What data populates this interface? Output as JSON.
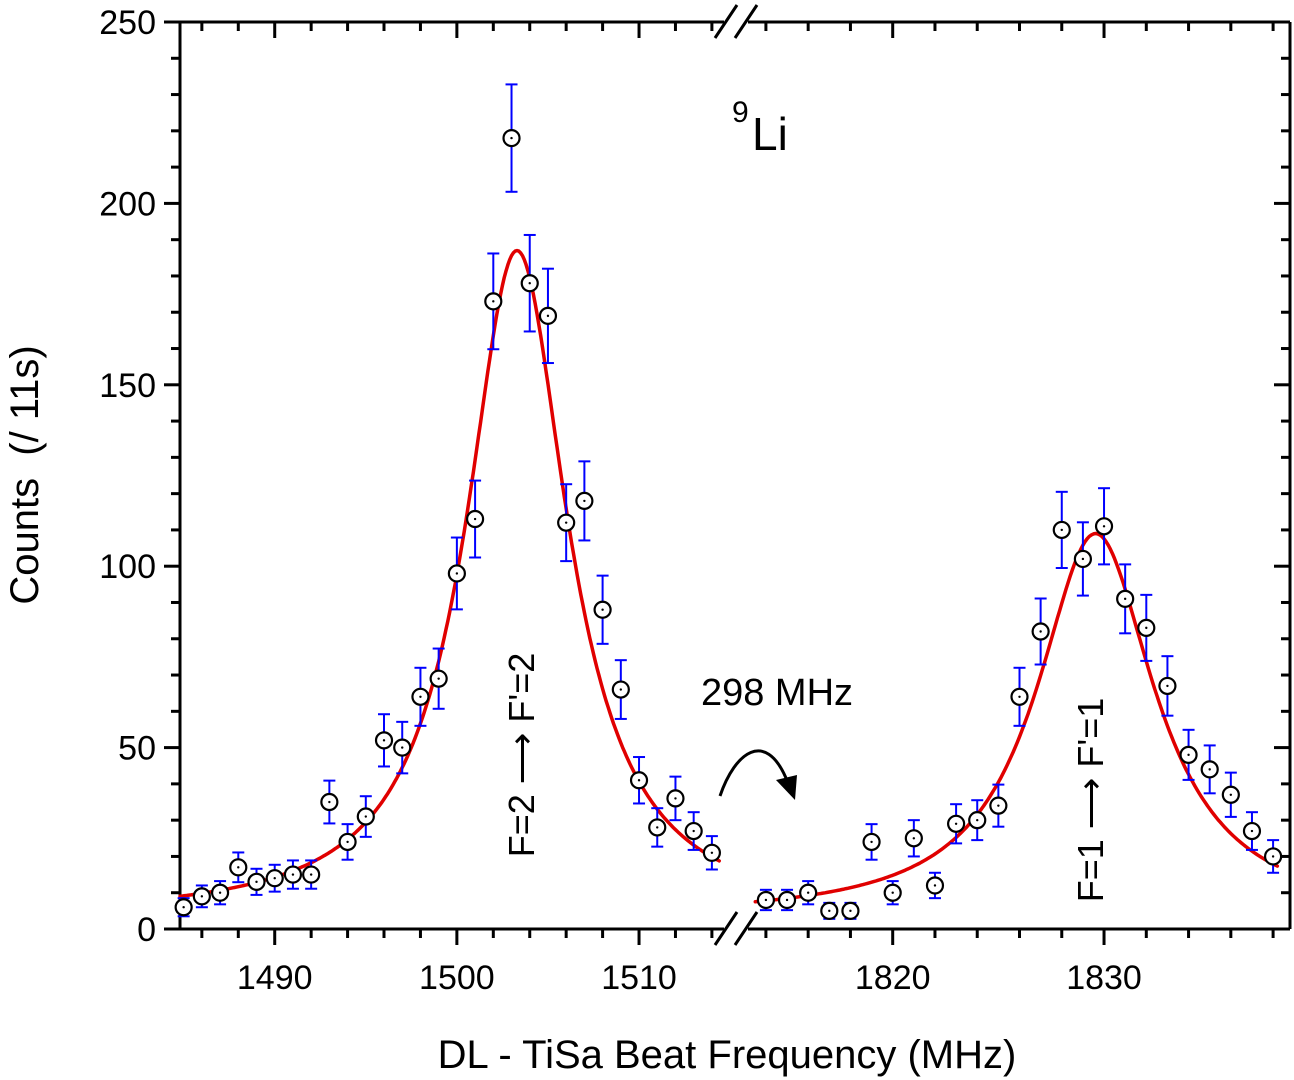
{
  "chart_data": {
    "type": "scatter",
    "title": "",
    "xlabel": "DL - TiSa Beat Frequency (MHz)",
    "ylabel": "Counts  (/ 11s)",
    "broken_x_axis": true,
    "segments": [
      {
        "xlim": [
          1484.8,
          1514.5
        ],
        "major_ticks": [
          1490,
          1500,
          1510
        ],
        "minor_step": 2
      },
      {
        "xlim": [
          1813.2,
          1838.8
        ],
        "major_ticks": [
          1820,
          1830
        ],
        "minor_step": 2
      }
    ],
    "ylim": [
      0,
      250
    ],
    "y_major_ticks": [
      0,
      50,
      100,
      150,
      200,
      250
    ],
    "y_minor_step": 10,
    "grid": false,
    "series": [
      {
        "name": "data",
        "marker": "circle-dot",
        "marker_color": "#000000",
        "errorbar_color": "#0000ff",
        "points": [
          {
            "x": 1485,
            "y": 6,
            "err": 2.5
          },
          {
            "x": 1486,
            "y": 9,
            "err": 3
          },
          {
            "x": 1487,
            "y": 10,
            "err": 3.2
          },
          {
            "x": 1488,
            "y": 17,
            "err": 4.1
          },
          {
            "x": 1489,
            "y": 13,
            "err": 3.6
          },
          {
            "x": 1490,
            "y": 14,
            "err": 3.7
          },
          {
            "x": 1491,
            "y": 15,
            "err": 3.9
          },
          {
            "x": 1492,
            "y": 15,
            "err": 3.9
          },
          {
            "x": 1493,
            "y": 35,
            "err": 5.9
          },
          {
            "x": 1494,
            "y": 24,
            "err": 4.9
          },
          {
            "x": 1495,
            "y": 31,
            "err": 5.6
          },
          {
            "x": 1496,
            "y": 52,
            "err": 7.2
          },
          {
            "x": 1497,
            "y": 50,
            "err": 7.1
          },
          {
            "x": 1498,
            "y": 64,
            "err": 8
          },
          {
            "x": 1499,
            "y": 69,
            "err": 8.3
          },
          {
            "x": 1500,
            "y": 98,
            "err": 9.9
          },
          {
            "x": 1501,
            "y": 113,
            "err": 10.6
          },
          {
            "x": 1502,
            "y": 173,
            "err": 13.2
          },
          {
            "x": 1503,
            "y": 218,
            "err": 14.8
          },
          {
            "x": 1504,
            "y": 178,
            "err": 13.3
          },
          {
            "x": 1505,
            "y": 169,
            "err": 13
          },
          {
            "x": 1506,
            "y": 112,
            "err": 10.6
          },
          {
            "x": 1507,
            "y": 118,
            "err": 10.9
          },
          {
            "x": 1508,
            "y": 88,
            "err": 9.4
          },
          {
            "x": 1509,
            "y": 66,
            "err": 8.1
          },
          {
            "x": 1510,
            "y": 41,
            "err": 6.4
          },
          {
            "x": 1511,
            "y": 28,
            "err": 5.3
          },
          {
            "x": 1512,
            "y": 36,
            "err": 6
          },
          {
            "x": 1513,
            "y": 27,
            "err": 5.2
          },
          {
            "x": 1514,
            "y": 21,
            "err": 4.6
          },
          {
            "x": 1814,
            "y": 8,
            "err": 2.8
          },
          {
            "x": 1815,
            "y": 8,
            "err": 2.8
          },
          {
            "x": 1816,
            "y": 10,
            "err": 3.2
          },
          {
            "x": 1817,
            "y": 5,
            "err": 2.2
          },
          {
            "x": 1818,
            "y": 5,
            "err": 2.2
          },
          {
            "x": 1819,
            "y": 24,
            "err": 4.9
          },
          {
            "x": 1820,
            "y": 10,
            "err": 3.2
          },
          {
            "x": 1821,
            "y": 25,
            "err": 5
          },
          {
            "x": 1822,
            "y": 12,
            "err": 3.5
          },
          {
            "x": 1823,
            "y": 29,
            "err": 5.4
          },
          {
            "x": 1824,
            "y": 30,
            "err": 5.5
          },
          {
            "x": 1825,
            "y": 34,
            "err": 5.8
          },
          {
            "x": 1826,
            "y": 64,
            "err": 8
          },
          {
            "x": 1827,
            "y": 82,
            "err": 9.1
          },
          {
            "x": 1828,
            "y": 110,
            "err": 10.5
          },
          {
            "x": 1829,
            "y": 102,
            "err": 10.1
          },
          {
            "x": 1830,
            "y": 111,
            "err": 10.5
          },
          {
            "x": 1831,
            "y": 91,
            "err": 9.5
          },
          {
            "x": 1832,
            "y": 83,
            "err": 9.1
          },
          {
            "x": 1833,
            "y": 67,
            "err": 8.2
          },
          {
            "x": 1834,
            "y": 48,
            "err": 6.9
          },
          {
            "x": 1835,
            "y": 44,
            "err": 6.6
          },
          {
            "x": 1836,
            "y": 37,
            "err": 6.1
          },
          {
            "x": 1837,
            "y": 27,
            "err": 5.2
          },
          {
            "x": 1838,
            "y": 20,
            "err": 4.5
          }
        ]
      },
      {
        "name": "fit",
        "type": "line",
        "color": "#e00000",
        "peaks": [
          {
            "label": "F=2 → F'=2",
            "center": 1503.3,
            "amplitude": 184,
            "hwhm": 3.4,
            "background": 3,
            "x_range": [
              1484.8,
              1514.4
            ]
          },
          {
            "label": "F=1 → F'=1",
            "center": 1829.6,
            "amplitude": 106,
            "hwhm": 3.4,
            "background": 3,
            "x_range": [
              1813.5,
              1838.2
            ]
          }
        ]
      }
    ],
    "annotations": {
      "isotope_mass": "9",
      "isotope_symbol": "Li",
      "splitting": "298 MHz",
      "left_transition": "F=2 ⟶ F'=2",
      "right_transition": "F=1 ⟶ F'=1"
    }
  }
}
